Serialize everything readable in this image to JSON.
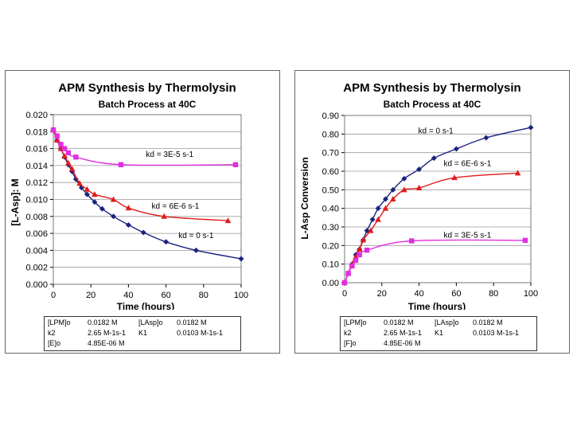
{
  "colors": {
    "diamond": "#1a237e",
    "triangle": "#e01b1b",
    "square": "#e22ee0",
    "grid": "#9a9a9a",
    "plot_border": "#777777"
  },
  "chart_data": [
    {
      "type": "line",
      "title": "APM Synthesis by Thermolysin",
      "subtitle": "Batch Process at 40C",
      "xlabel": "Time (hours)",
      "ylabel": "[L-Asp]: M",
      "xlim": [
        0,
        100
      ],
      "ylim": [
        0,
        0.02
      ],
      "xticks": [
        0,
        20,
        40,
        60,
        80,
        100
      ],
      "xtick_labels": [
        "0",
        "20",
        "40",
        "60",
        "80",
        "100"
      ],
      "yticks": [
        0,
        0.002,
        0.004,
        0.006,
        0.008,
        0.01,
        0.012,
        0.014,
        0.016,
        0.018,
        0.02
      ],
      "ytick_labels": [
        "0.000",
        "0.002",
        "0.004",
        "0.006",
        "0.008",
        "0.010",
        "0.012",
        "0.014",
        "0.016",
        "0.018",
        "0.020"
      ],
      "grid": "horizontal",
      "series": [
        {
          "name": "kd = 0 s-1",
          "marker": "diamond",
          "color": "#1a237e",
          "label_at": [
            76,
            0.0058
          ],
          "x": [
            0,
            2,
            4,
            6,
            8,
            10,
            12,
            15,
            18,
            22,
            26,
            32,
            40,
            48,
            60,
            76,
            100
          ],
          "y": [
            0.0182,
            0.017,
            0.016,
            0.015,
            0.0141,
            0.0133,
            0.0124,
            0.0114,
            0.0106,
            0.0097,
            0.0089,
            0.008,
            0.007,
            0.0061,
            0.005,
            0.004,
            0.003
          ]
        },
        {
          "name": "kd = 6E-6 s-1",
          "marker": "triangle",
          "color": "#e01b1b",
          "label_at": [
            65,
            0.0093
          ],
          "x": [
            0,
            2,
            4,
            6,
            8,
            10,
            14,
            18,
            22,
            32,
            40,
            59,
            93
          ],
          "y": [
            0.0182,
            0.017,
            0.016,
            0.0151,
            0.0143,
            0.0136,
            0.0119,
            0.0112,
            0.0106,
            0.01,
            0.009,
            0.008,
            0.0075
          ]
        },
        {
          "name": "kd = 3E-5 s-1",
          "marker": "square",
          "color": "#e22ee0",
          "label_at": [
            62,
            0.0154
          ],
          "x": [
            0,
            2,
            4,
            6,
            8,
            12,
            36,
            97
          ],
          "y": [
            0.0182,
            0.0175,
            0.0165,
            0.016,
            0.0155,
            0.015,
            0.0141,
            0.0141
          ]
        }
      ],
      "parameters": [
        {
          "label": "[LPM]o",
          "value": "0.0182 M",
          "label2": "[LAsp]o",
          "value2": "0.0182 M"
        },
        {
          "label": "k2",
          "value": "2.65  M-1s-1",
          "label2": "K1",
          "value2": "0.0103 M-1s-1"
        },
        {
          "label": "[E]o",
          "value": "4.85E-06 M"
        }
      ]
    },
    {
      "type": "line",
      "title": "APM Synthesis by Thermolysin",
      "subtitle": "Batch Process at 40C",
      "xlabel": "Time (hours)",
      "ylabel": "L-Asp Conversion",
      "xlim": [
        0,
        100
      ],
      "ylim": [
        0,
        0.9
      ],
      "xticks": [
        0,
        20,
        40,
        60,
        80,
        100
      ],
      "xtick_labels": [
        "0",
        "20",
        "40",
        "60",
        "80",
        "100"
      ],
      "yticks": [
        0,
        0.1,
        0.2,
        0.3,
        0.4,
        0.5,
        0.6,
        0.7,
        0.8,
        0.9
      ],
      "ytick_labels": [
        "0.00",
        "0.10",
        "0.20",
        "0.30",
        "0.40",
        "0.50",
        "0.60",
        "0.70",
        "0.80",
        "0.90"
      ],
      "grid": "horizontal",
      "series": [
        {
          "name": "kd = 0 s-1",
          "marker": "diamond",
          "color": "#1a237e",
          "label_at": [
            49,
            0.82
          ],
          "x": [
            0,
            2,
            4,
            6,
            8,
            10,
            12,
            15,
            18,
            22,
            26,
            32,
            40,
            48,
            60,
            76,
            100
          ],
          "y": [
            0.0,
            0.05,
            0.1,
            0.15,
            0.18,
            0.23,
            0.28,
            0.34,
            0.4,
            0.45,
            0.5,
            0.56,
            0.61,
            0.67,
            0.72,
            0.78,
            0.835
          ]
        },
        {
          "name": "kd = 6E-6 s-1",
          "marker": "triangle",
          "color": "#e01b1b",
          "label_at": [
            66,
            0.645
          ],
          "x": [
            0,
            2,
            4,
            6,
            8,
            10,
            14,
            18,
            22,
            26,
            32,
            40,
            59,
            93
          ],
          "y": [
            0.0,
            0.05,
            0.1,
            0.14,
            0.18,
            0.23,
            0.28,
            0.34,
            0.4,
            0.45,
            0.5,
            0.51,
            0.565,
            0.59
          ]
        },
        {
          "name": "kd = 3E-5 s-1",
          "marker": "square",
          "color": "#e22ee0",
          "label_at": [
            66,
            0.26
          ],
          "x": [
            0,
            2,
            4,
            6,
            8,
            12,
            36,
            97
          ],
          "y": [
            0.0,
            0.05,
            0.09,
            0.12,
            0.15,
            0.175,
            0.225,
            0.228
          ]
        }
      ],
      "parameters": [
        {
          "label": "[LPM]o",
          "value": "0.0182 M",
          "label2": "[LAsp]o",
          "value2": "0.0182 M"
        },
        {
          "label": "k2",
          "value": "2.65  M-1s-1",
          "label2": "K1",
          "value2": "0.0103 M-1s-1"
        },
        {
          "label": "[F]o",
          "value": "4.85E-06 M"
        }
      ]
    }
  ]
}
